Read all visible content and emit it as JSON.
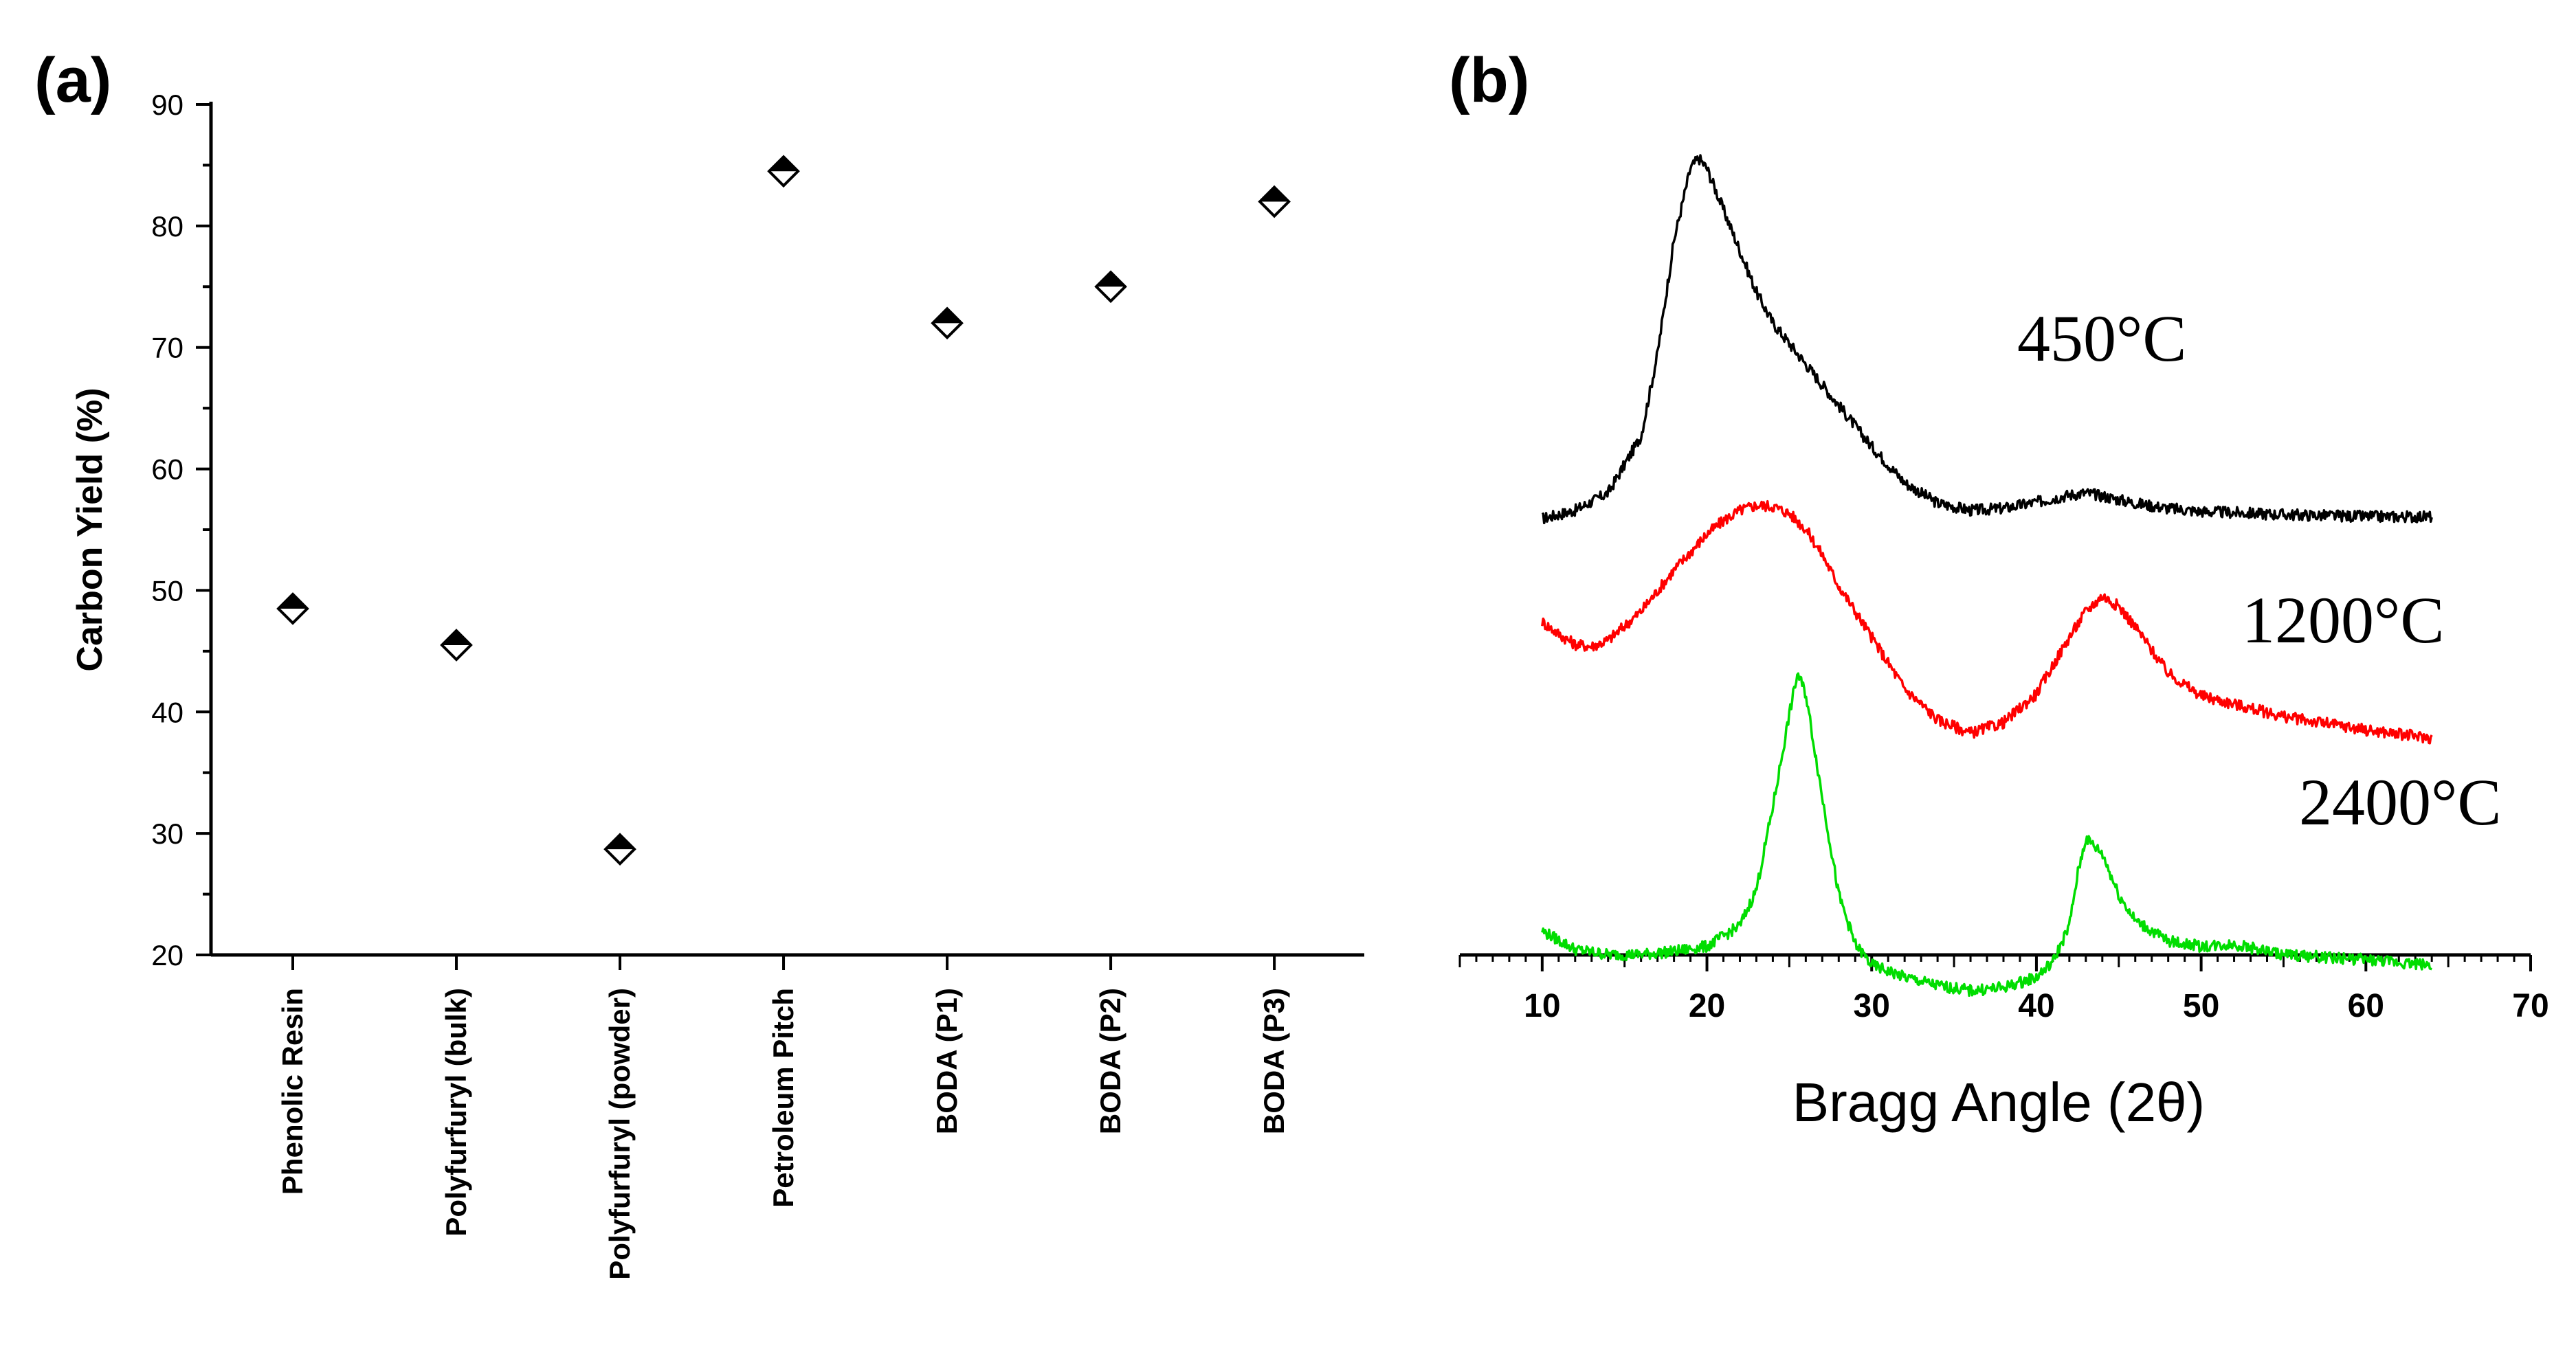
{
  "chart_data": [
    {
      "panel_label": "(a)",
      "type": "scatter",
      "marker": "half-filled-diamond",
      "categories": [
        "Phenolic Resin",
        "Polyfurfuryl (bulk)",
        "Polyfurfuryl (powder)",
        "Petroleum Pitch",
        "BODA (P1)",
        "BODA (P2)",
        "BODA (P3)"
      ],
      "values": [
        48.5,
        45.5,
        28.7,
        84.5,
        72.0,
        75.0,
        82.0
      ],
      "ylabel": "Carbon Yield (%)",
      "xlabel": "",
      "ylim": [
        20,
        90
      ],
      "yticks": [
        "20",
        "30",
        "40",
        "50",
        "60",
        "70",
        "80",
        "90"
      ]
    },
    {
      "panel_label": "(b)",
      "type": "line",
      "xlabel": "Bragg Angle (2θ)",
      "xlim": [
        5,
        70
      ],
      "xticks": [
        "10",
        "20",
        "30",
        "40",
        "50",
        "60",
        "70"
      ],
      "y_axis_shown": false,
      "series": [
        {
          "name": "450°C",
          "color": "#000000",
          "x": [
            10,
            12,
            14,
            16,
            17,
            18,
            19,
            19.5,
            20,
            21,
            22,
            23,
            24,
            25,
            26,
            28,
            30,
            32,
            34,
            36,
            38,
            40,
            42,
            43,
            44,
            46,
            48,
            50,
            55,
            60,
            64
          ],
          "y": [
            20.0,
            20.8,
            22.5,
            28,
            36,
            47,
            54,
            55,
            54,
            50,
            46,
            42,
            39,
            37,
            35,
            31,
            27,
            23.5,
            21.5,
            20.8,
            21.0,
            21.6,
            22.3,
            22.5,
            22.2,
            21.5,
            21.0,
            20.7,
            20.4,
            20.2,
            20.2
          ]
        },
        {
          "name": "1200°C",
          "color": "#ff0000",
          "x": [
            10,
            11,
            12,
            13,
            14,
            16,
            18,
            20,
            21,
            22,
            23,
            24,
            25,
            26,
            27,
            28,
            30,
            32,
            34,
            36,
            38,
            40,
            42,
            43,
            44,
            45,
            46,
            48,
            50,
            55,
            60,
            64
          ],
          "y": [
            10.0,
            8.8,
            7.8,
            7.6,
            8.2,
            11,
            15,
            18.5,
            19.8,
            20.8,
            21.3,
            21.2,
            20.5,
            19.0,
            16.5,
            13.5,
            8.5,
            3.5,
            0.5,
            -0.8,
            0.2,
            3.0,
            8.5,
            11.0,
            12.5,
            11.5,
            9.5,
            5.0,
            2.8,
            0.8,
            -0.5,
            -1.3
          ]
        },
        {
          "name": "2400°C",
          "color": "#00dd00",
          "x": [
            10,
            12,
            14,
            16,
            18,
            20,
            22,
            23,
            24,
            25,
            25.5,
            26,
            27,
            28,
            29,
            30,
            32,
            34,
            36,
            38,
            40,
            41,
            42,
            42.5,
            43,
            44,
            45,
            46,
            48,
            50,
            52,
            55,
            60,
            64
          ],
          "y": [
            -20.0,
            -21.8,
            -22.3,
            -22.3,
            -22.0,
            -21.5,
            -19.5,
            -16,
            -8,
            1,
            5,
            3,
            -7,
            -16.5,
            -21.3,
            -23.3,
            -24.5,
            -25.3,
            -25.8,
            -25.5,
            -24.5,
            -23.0,
            -19.5,
            -14.5,
            -11.0,
            -12.5,
            -16.5,
            -19.0,
            -21.0,
            -21.5,
            -21.3,
            -22.3,
            -22.8,
            -23.3
          ]
        }
      ]
    }
  ]
}
